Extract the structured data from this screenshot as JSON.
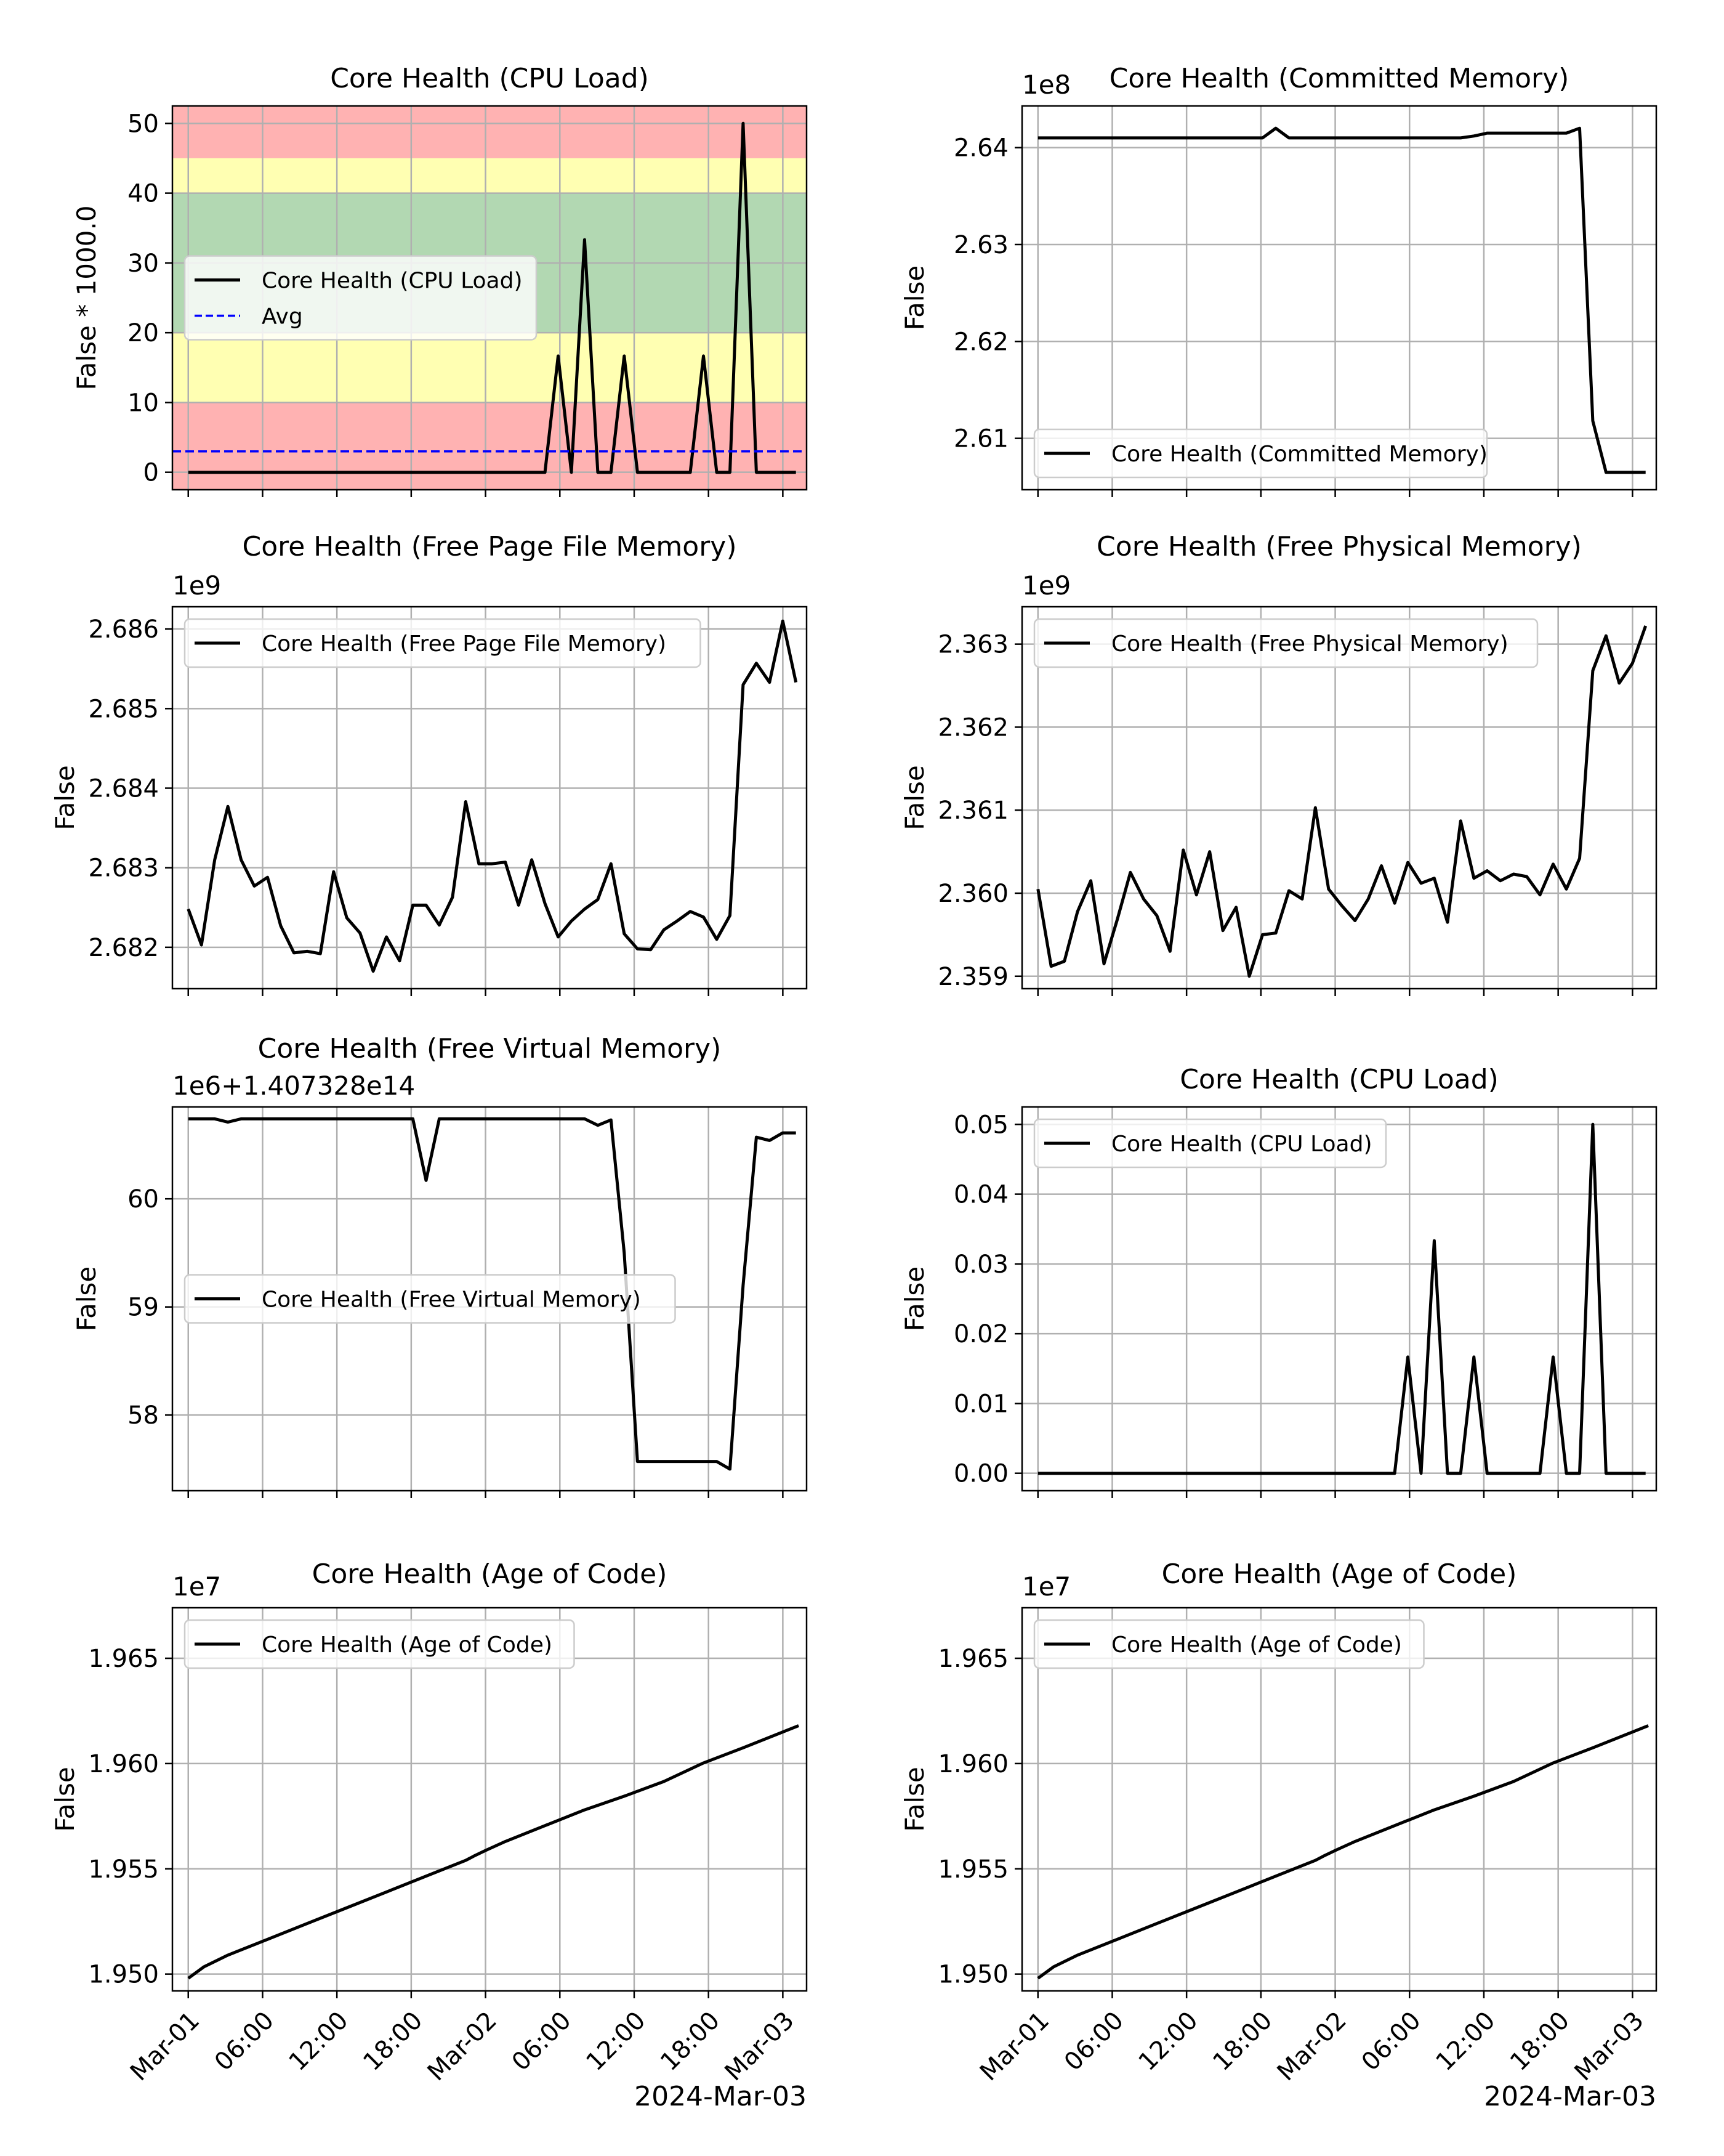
{
  "figure": {
    "xticks": [
      "Mar-01",
      "06:00",
      "12:00",
      "18:00",
      "Mar-02",
      "06:00",
      "12:00",
      "18:00",
      "Mar-03"
    ],
    "xrange": [
      -0.04,
      1.56
    ],
    "footer_label": "2024-Mar-03"
  },
  "colors": {
    "line": "#000000",
    "avg": "#0000ff",
    "band_red": "#ffb2b2",
    "band_yellow": "#ffffb2",
    "band_green": "#b2d8b2",
    "grid": "#b0b0b0"
  },
  "chart_data": [
    {
      "type": "line",
      "title": "Core Health (CPU Load)",
      "ylabel": "False * 1000.0",
      "offset_text": "",
      "ylim": [
        -2.5,
        52.5
      ],
      "yticks": [
        0,
        10,
        20,
        30,
        40,
        50
      ],
      "ytick_labels": [
        "0",
        "10",
        "20",
        "30",
        "40",
        "50"
      ],
      "grid": true,
      "legend_location": "center-left",
      "show_xticklabels": false,
      "bands": [
        {
          "from": -2.5,
          "to": 10,
          "color": "red"
        },
        {
          "from": 10,
          "to": 20,
          "color": "yellow"
        },
        {
          "from": 20,
          "to": 40,
          "color": "green"
        },
        {
          "from": 40,
          "to": 45,
          "color": "yellow"
        },
        {
          "from": 45,
          "to": 52.5,
          "color": "red"
        }
      ],
      "series": [
        {
          "name": "Core Health (CPU Load)",
          "style": "solid",
          "values": [
            0,
            0,
            0,
            0,
            0,
            0,
            0,
            0,
            0,
            0,
            0,
            0,
            0,
            0,
            0,
            0,
            0,
            0,
            0,
            0,
            0,
            0,
            0,
            0,
            0,
            0,
            0,
            0,
            16.67,
            0,
            33.33,
            0,
            0,
            16.67,
            0,
            0,
            0,
            0,
            0,
            16.67,
            0,
            0,
            50,
            0,
            0,
            0,
            0
          ]
        },
        {
          "name": "Avg",
          "style": "dashed",
          "constant": 3.0
        }
      ]
    },
    {
      "type": "line",
      "title": "Core Health (Committed Memory)",
      "ylabel": "False",
      "offset_text": "1e8",
      "ylim": [
        2.6047,
        2.6443
      ],
      "yticks": [
        2.61,
        2.62,
        2.63,
        2.64
      ],
      "ytick_labels": [
        "2.61",
        "2.62",
        "2.63",
        "2.64"
      ],
      "grid": true,
      "legend_location": "lower-left",
      "show_xticklabels": false,
      "series": [
        {
          "name": "Core Health (Committed Memory)",
          "style": "solid",
          "values": [
            2.641,
            2.641,
            2.641,
            2.641,
            2.641,
            2.641,
            2.641,
            2.641,
            2.641,
            2.641,
            2.641,
            2.641,
            2.641,
            2.641,
            2.641,
            2.641,
            2.641,
            2.641,
            2.642,
            2.641,
            2.641,
            2.641,
            2.641,
            2.641,
            2.641,
            2.641,
            2.641,
            2.641,
            2.641,
            2.641,
            2.641,
            2.641,
            2.641,
            2.6412,
            2.6415,
            2.6415,
            2.6415,
            2.6415,
            2.6415,
            2.6415,
            2.6415,
            2.642,
            2.6118,
            2.6065,
            2.6065,
            2.6065,
            2.6065
          ]
        }
      ]
    },
    {
      "type": "line",
      "title": "Core Health (Free Page File Memory)",
      "ylabel": "False",
      "offset_text": "1e9",
      "ylim": [
        2.68148,
        2.68628
      ],
      "yticks": [
        2.682,
        2.683,
        2.684,
        2.685,
        2.686
      ],
      "ytick_labels": [
        "2.682",
        "2.683",
        "2.684",
        "2.685",
        "2.686"
      ],
      "grid": true,
      "legend_location": "upper-left",
      "show_xticklabels": false,
      "series": [
        {
          "name": "Core Health (Free Page File Memory)",
          "style": "solid",
          "values": [
            2.68248,
            2.68203,
            2.6831,
            2.68377,
            2.6831,
            2.68277,
            2.68288,
            2.68227,
            2.68193,
            2.68195,
            2.68192,
            2.68295,
            2.68237,
            2.68218,
            2.6817,
            2.68213,
            2.68183,
            2.68253,
            2.68253,
            2.68228,
            2.68263,
            2.68383,
            2.68305,
            2.68305,
            2.68307,
            2.68253,
            2.6831,
            2.68255,
            2.68213,
            2.68233,
            2.68248,
            2.6826,
            2.68305,
            2.68217,
            2.68198,
            2.68197,
            2.68222,
            2.68233,
            2.68245,
            2.68238,
            2.6821,
            2.6824,
            2.6853,
            2.68557,
            2.68533,
            2.6861,
            2.68533
          ]
        }
      ]
    },
    {
      "type": "line",
      "title": "Core Health (Free Physical Memory)",
      "ylabel": "False",
      "offset_text": "1e9",
      "ylim": [
        2.35885,
        2.36345
      ],
      "yticks": [
        2.359,
        2.36,
        2.361,
        2.362,
        2.363
      ],
      "ytick_labels": [
        "2.359",
        "2.360",
        "2.361",
        "2.362",
        "2.363"
      ],
      "grid": true,
      "legend_location": "upper-left",
      "show_xticklabels": false,
      "series": [
        {
          "name": "Core Health (Free Physical Memory)",
          "style": "solid",
          "values": [
            2.36005,
            2.35912,
            2.35918,
            2.35978,
            2.36015,
            2.35915,
            2.35968,
            2.36025,
            2.35993,
            2.35973,
            2.3593,
            2.36052,
            2.35998,
            2.3605,
            2.35955,
            2.35983,
            2.359,
            2.3595,
            2.35952,
            2.36003,
            2.35993,
            2.36103,
            2.36005,
            2.35985,
            2.35967,
            2.35993,
            2.36033,
            2.35988,
            2.36037,
            2.36012,
            2.36018,
            2.35965,
            2.36087,
            2.36018,
            2.36027,
            2.36015,
            2.36023,
            2.3602,
            2.35998,
            2.36035,
            2.36005,
            2.36042,
            2.36268,
            2.3631,
            2.36253,
            2.36277,
            2.36322
          ]
        }
      ]
    },
    {
      "type": "line",
      "title": "Core Health (Free Virtual Memory)",
      "ylabel": "False",
      "offset_text": "1e6+1.407328e14",
      "ylim": [
        57.3,
        60.85
      ],
      "yticks": [
        58,
        59,
        60
      ],
      "ytick_labels": [
        "58",
        "59",
        "60"
      ],
      "grid": true,
      "legend_location": "center-left",
      "show_xticklabels": false,
      "series": [
        {
          "name": "Core Health (Free Virtual Memory)",
          "style": "solid",
          "values": [
            60.74,
            60.74,
            60.74,
            60.71,
            60.74,
            60.74,
            60.74,
            60.74,
            60.74,
            60.74,
            60.74,
            60.74,
            60.74,
            60.74,
            60.74,
            60.74,
            60.74,
            60.74,
            60.17,
            60.74,
            60.74,
            60.74,
            60.74,
            60.74,
            60.74,
            60.74,
            60.74,
            60.74,
            60.74,
            60.74,
            60.74,
            60.68,
            60.73,
            59.5,
            57.57,
            57.57,
            57.57,
            57.57,
            57.57,
            57.57,
            57.57,
            57.5,
            59.2,
            60.57,
            60.54,
            60.61,
            60.61
          ]
        }
      ]
    },
    {
      "type": "line",
      "title": "Core Health (CPU Load)",
      "ylabel": "False",
      "offset_text": "",
      "ylim": [
        -0.0025,
        0.0525
      ],
      "yticks": [
        0,
        0.01,
        0.02,
        0.03,
        0.04,
        0.05
      ],
      "ytick_labels": [
        "0.00",
        "0.01",
        "0.02",
        "0.03",
        "0.04",
        "0.05"
      ],
      "grid": true,
      "legend_location": "upper-left",
      "show_xticklabels": false,
      "series": [
        {
          "name": "Core Health (CPU Load)",
          "style": "solid",
          "values": [
            0,
            0,
            0,
            0,
            0,
            0,
            0,
            0,
            0,
            0,
            0,
            0,
            0,
            0,
            0,
            0,
            0,
            0,
            0,
            0,
            0,
            0,
            0,
            0,
            0,
            0,
            0,
            0,
            0.01667,
            0,
            0.03333,
            0,
            0,
            0.01667,
            0,
            0,
            0,
            0,
            0,
            0.01667,
            0,
            0,
            0.05,
            0,
            0,
            0,
            0
          ]
        }
      ]
    },
    {
      "type": "line",
      "title": "Core Health (Age of Code)",
      "ylabel": "False",
      "offset_text": "1e7",
      "ylim": [
        1.9492,
        1.9674
      ],
      "yticks": [
        1.95,
        1.955,
        1.96,
        1.965
      ],
      "ytick_labels": [
        "1.950",
        "1.955",
        "1.960",
        "1.965"
      ],
      "grid": true,
      "legend_location": "upper-left",
      "show_xticklabels": true,
      "series": [
        {
          "name": "Core Health (Age of Code)",
          "style": "solid",
          "x": [
            0,
            0.04,
            0.1,
            0.2,
            0.3,
            0.4,
            0.5,
            0.6,
            0.7,
            0.72,
            0.75,
            0.8,
            0.9,
            1.0,
            1.1,
            1.2,
            1.3,
            1.4,
            1.54
          ],
          "values": [
            1.9498,
            1.95035,
            1.9509,
            1.95165,
            1.9524,
            1.95315,
            1.9539,
            1.95465,
            1.9554,
            1.9556,
            1.95587,
            1.9563,
            1.95705,
            1.9578,
            1.95845,
            1.95915,
            1.96003,
            1.96075,
            1.9618
          ]
        }
      ]
    },
    {
      "type": "line",
      "title": "Core Health (Age of Code)",
      "ylabel": "False",
      "offset_text": "1e7",
      "ylim": [
        1.9492,
        1.9674
      ],
      "yticks": [
        1.95,
        1.955,
        1.96,
        1.965
      ],
      "ytick_labels": [
        "1.950",
        "1.955",
        "1.960",
        "1.965"
      ],
      "grid": true,
      "legend_location": "upper-left",
      "show_xticklabels": true,
      "series": [
        {
          "name": "Core Health (Age of Code)",
          "style": "solid",
          "x": [
            0,
            0.04,
            0.1,
            0.2,
            0.3,
            0.4,
            0.5,
            0.6,
            0.7,
            0.72,
            0.75,
            0.8,
            0.9,
            1.0,
            1.1,
            1.2,
            1.3,
            1.4,
            1.54
          ],
          "values": [
            1.9498,
            1.95035,
            1.9509,
            1.95165,
            1.9524,
            1.95315,
            1.9539,
            1.95465,
            1.9554,
            1.9556,
            1.95587,
            1.9563,
            1.95705,
            1.9578,
            1.95845,
            1.95915,
            1.96003,
            1.96075,
            1.9618
          ]
        }
      ]
    }
  ]
}
